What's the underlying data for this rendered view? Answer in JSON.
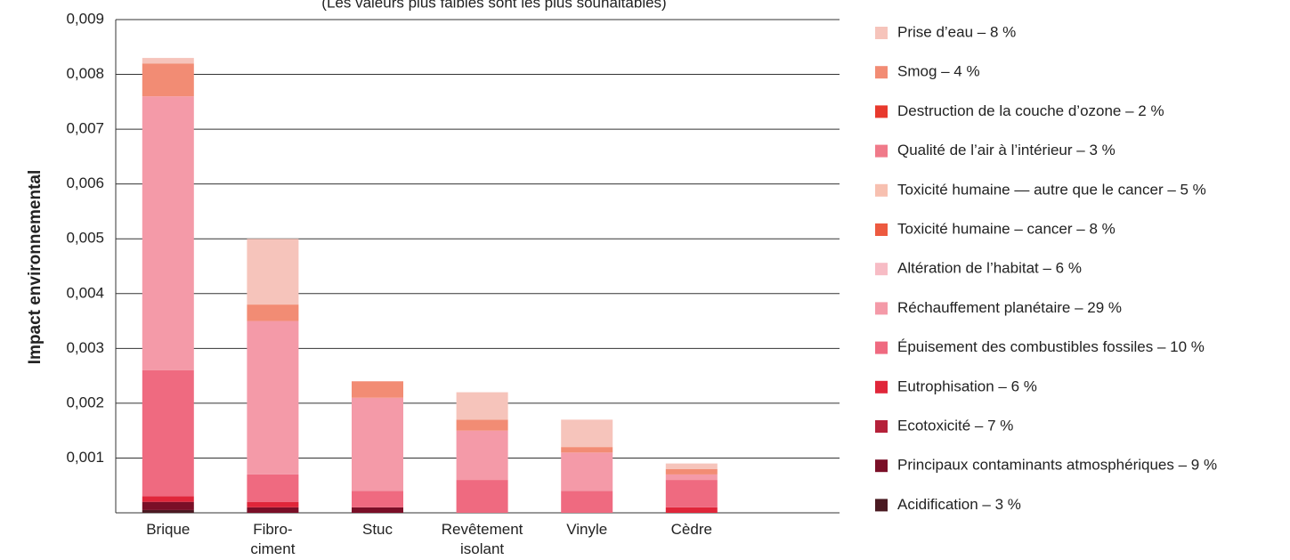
{
  "chart_data": {
    "type": "stacked_bar",
    "subtitle": "(Les valeurs plus faibles sont les plus souhaitables)",
    "y_label": "Impact environnemental",
    "categories": [
      "Brique",
      "Fibro-\nciment",
      "Stuc",
      "Revêtement\nisolant",
      "Vinyle",
      "Cèdre"
    ],
    "ylim": [
      0,
      0.009
    ],
    "yticks": [
      {
        "value": 0.001,
        "label": "0,001"
      },
      {
        "value": 0.002,
        "label": "0,002"
      },
      {
        "value": 0.003,
        "label": "0,003"
      },
      {
        "value": 0.004,
        "label": "0,004"
      },
      {
        "value": 0.005,
        "label": "0,005"
      },
      {
        "value": 0.006,
        "label": "0,006"
      },
      {
        "value": 0.007,
        "label": "0,007"
      },
      {
        "value": 0.008,
        "label": "0,008"
      },
      {
        "value": 0.009,
        "label": "0,009"
      }
    ],
    "grid": true,
    "legend": "right",
    "series": [
      {
        "name": "Prise d’eau – 8 %",
        "color": "#f6c4bb",
        "values": [
          0.0001,
          0.0012,
          0,
          0.0005,
          0.0005,
          0.0001
        ]
      },
      {
        "name": "Smog – 4 %",
        "color": "#f28c74",
        "values": [
          0.0006,
          0.0003,
          0.0003,
          0.0002,
          0.0001,
          0.0001
        ]
      },
      {
        "name": "Destruction de la couche d’ozone – 2 %",
        "color": "#e8392d",
        "values": [
          0,
          0,
          0,
          0,
          0,
          0
        ]
      },
      {
        "name": "Qualité de l’air à l’intérieur – 3 %",
        "color": "#f07a8a",
        "values": [
          0,
          0,
          0,
          0,
          0,
          0
        ]
      },
      {
        "name": "Toxicité humaine — autre que le cancer – 5 %",
        "color": "#f7c0b0",
        "values": [
          0,
          0,
          0,
          0,
          0,
          0
        ]
      },
      {
        "name": "Toxicité humaine – cancer – 8 %",
        "color": "#ed5a40",
        "values": [
          0,
          0,
          0,
          0,
          0,
          0
        ]
      },
      {
        "name": "Altération de l’habitat – 6 %",
        "color": "#f7bcc5",
        "values": [
          0,
          0,
          0,
          0,
          0,
          0
        ]
      },
      {
        "name": "Réchauffement planétaire – 29 %",
        "color": "#f49aa8",
        "values": [
          0.005,
          0.0028,
          0.0017,
          0.0009,
          0.0007,
          0.0001
        ]
      },
      {
        "name": "Épuisement des combustibles fossiles – 10 %",
        "color": "#ef6a80",
        "values": [
          0.0023,
          0.0005,
          0.0003,
          0.0006,
          0.0004,
          0.0005
        ]
      },
      {
        "name": "Eutrophisation – 6 %",
        "color": "#e0263a",
        "values": [
          0.0001,
          0.0001,
          0,
          0,
          0,
          0.0001
        ]
      },
      {
        "name": "Ecotoxicité – 7 %",
        "color": "#b5213a",
        "values": [
          0,
          0,
          0,
          0,
          0,
          0
        ]
      },
      {
        "name": "Principaux contaminants atmosphériques – 9 %",
        "color": "#7a0f27",
        "values": [
          0.00015,
          0.0001,
          0.0001,
          0,
          0,
          0
        ]
      },
      {
        "name": "Acidification – 3 %",
        "color": "#4a1a22",
        "values": [
          5e-05,
          0,
          0,
          0,
          0,
          0
        ]
      }
    ]
  }
}
